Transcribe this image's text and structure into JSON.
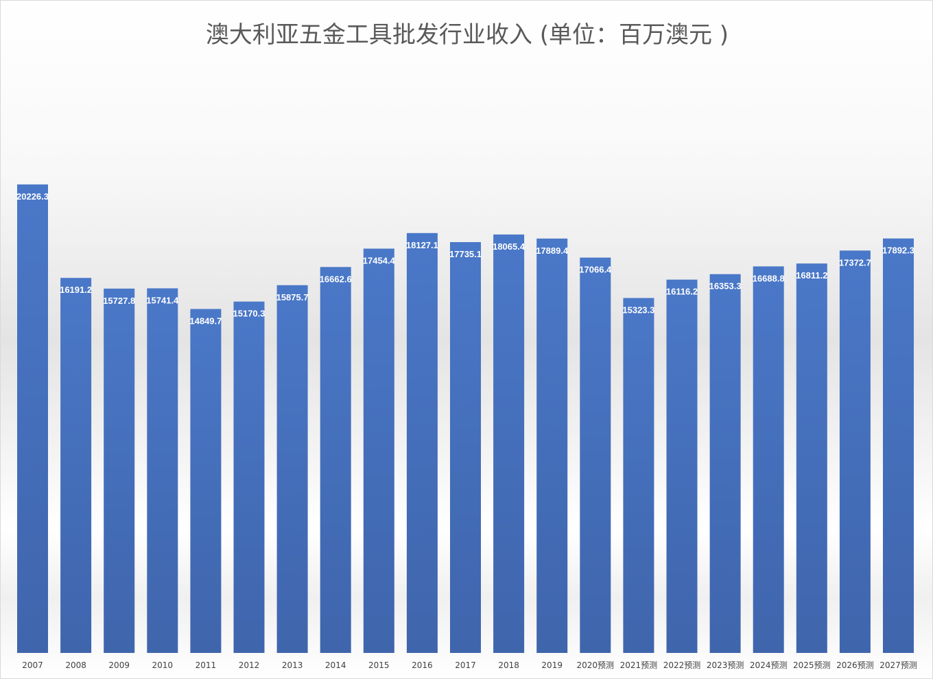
{
  "chart_data": {
    "type": "bar",
    "title": "澳大利亚五金工具批发行业收入 (单位：百万澳元 )",
    "xlabel": "",
    "ylabel": "",
    "ylim": [
      0,
      22000
    ],
    "grid": false,
    "legend": "none",
    "bar_color": "#4472c4",
    "categories": [
      "2007",
      "2008",
      "2009",
      "2010",
      "2011",
      "2012",
      "2013",
      "2014",
      "2015",
      "2016",
      "2017",
      "2018",
      "2019",
      "2020预测",
      "2021预测",
      "2022预测",
      "2023预测",
      "2024预测",
      "2025预测",
      "2026预测",
      "2027预测"
    ],
    "values": [
      20226.3,
      16191.2,
      15727.8,
      15741.4,
      14849.7,
      15170.3,
      15875.7,
      16662.6,
      17454.4,
      18127.1,
      17735.1,
      18065.4,
      17889.4,
      17066.4,
      15323.3,
      16116.2,
      16353.3,
      16688.8,
      16811.2,
      17372.7,
      17892.3
    ],
    "data_labels": [
      "20226.3",
      "16191.2",
      "15727.8",
      "15741.4",
      "14849.7",
      "15170.3",
      "15875.7",
      "16662.6",
      "17454.4",
      "18127.1",
      "17735.1",
      "18065.4",
      "17889.4",
      "17066.4",
      "15323.3",
      "16116.2",
      "16353.3",
      "16688.8",
      "16811.2",
      "17372.7",
      "17892.3"
    ]
  }
}
